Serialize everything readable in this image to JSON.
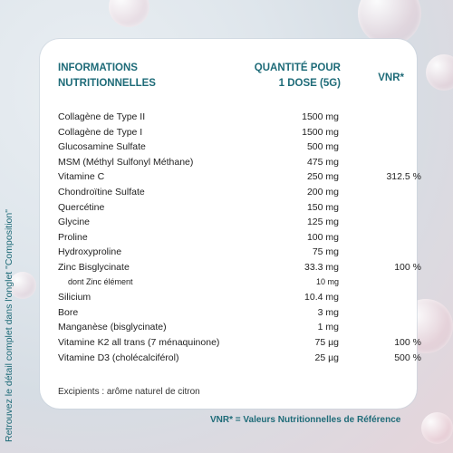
{
  "side_note": "Retrouvez le détail complet dans l'onglet \"Composition\"",
  "header": {
    "col1_line1": "INFORMATIONS",
    "col1_line2": "NUTRITIONNELLES",
    "col2_line1": "QUANTITÉ POUR",
    "col2_line2": "1 DOSE (5G)",
    "col3": "VNR*"
  },
  "rows": [
    {
      "name": "Collagène de Type II",
      "qty": "1500 mg",
      "vnr": ""
    },
    {
      "name": "Collagène de Type I",
      "qty": "1500 mg",
      "vnr": ""
    },
    {
      "name": "Glucosamine Sulfate",
      "qty": "500 mg",
      "vnr": ""
    },
    {
      "name": "MSM (Méthyl Sulfonyl Méthane)",
      "qty": "475 mg",
      "vnr": ""
    },
    {
      "name": "Vitamine C",
      "qty": "250 mg",
      "vnr": "312.5 %"
    },
    {
      "name": "Chondroïtine Sulfate",
      "qty": "200 mg",
      "vnr": ""
    },
    {
      "name": "Quercétine",
      "qty": "150 mg",
      "vnr": ""
    },
    {
      "name": "Glycine",
      "qty": "125 mg",
      "vnr": ""
    },
    {
      "name": "Proline",
      "qty": "100 mg",
      "vnr": ""
    },
    {
      "name": "Hydroxyproline",
      "qty": "75 mg",
      "vnr": ""
    },
    {
      "name": "Zinc Bisglycinate",
      "qty": "33.3 mg",
      "vnr": "100 %"
    },
    {
      "name": "dont Zinc élément",
      "qty": "10 mg",
      "vnr": "",
      "sub": true
    },
    {
      "name": "Silicium",
      "qty": "10.4 mg",
      "vnr": ""
    },
    {
      "name": "Bore",
      "qty": "3 mg",
      "vnr": ""
    },
    {
      "name": "Manganèse (bisglycinate)",
      "qty": "1 mg",
      "vnr": ""
    },
    {
      "name": "Vitamine K2 all trans (7 ménaquinone)",
      "qty": "75 µg",
      "vnr": "100 %"
    },
    {
      "name": "Vitamine D3 (cholécalciférol)",
      "qty": "25 µg",
      "vnr": "500 %"
    }
  ],
  "excipients": "Excipients :  arôme naturel de citron",
  "vnr_note": "VNR* = Valeurs Nutritionnelles de Référence"
}
